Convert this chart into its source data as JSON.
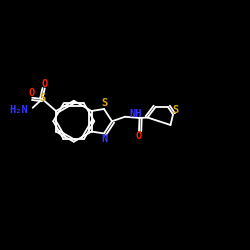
{
  "bg_color": "#000000",
  "bond_color": "#ffffff",
  "N_color": "#3333ff",
  "O_color": "#ff2200",
  "S_color": "#ddaa00",
  "lw": 1.3,
  "fontsize": 7.5,
  "xlim": [
    0,
    1
  ],
  "ylim": [
    0,
    1
  ]
}
